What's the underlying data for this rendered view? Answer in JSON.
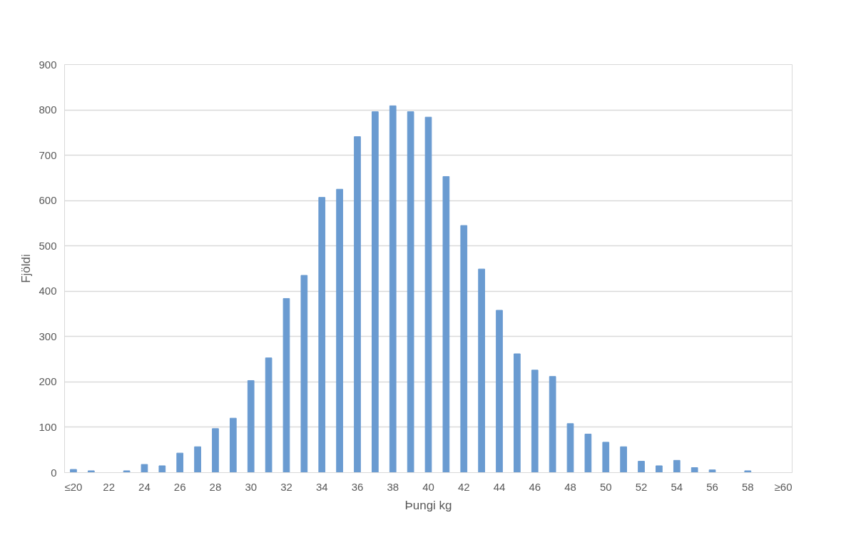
{
  "chart_data": {
    "type": "bar",
    "xlabel": "Þungi kg",
    "ylabel": "Fjöldi",
    "categories": [
      "≤20",
      null,
      "22",
      null,
      "24",
      null,
      "26",
      null,
      "28",
      null,
      "30",
      null,
      "32",
      null,
      "34",
      null,
      "36",
      null,
      "38",
      null,
      "40",
      null,
      "42",
      null,
      "44",
      null,
      "46",
      null,
      "48",
      null,
      "50",
      null,
      "52",
      null,
      "54",
      null,
      "56",
      null,
      "58",
      null,
      "≥60"
    ],
    "values": [
      7,
      4,
      0,
      4,
      18,
      15,
      43,
      57,
      97,
      120,
      203,
      253,
      384,
      435,
      607,
      625,
      741,
      796,
      809,
      796,
      784,
      653,
      545,
      449,
      358,
      262,
      226,
      212,
      108,
      85,
      67,
      57,
      25,
      15,
      27,
      11,
      6,
      0,
      4,
      0,
      0
    ],
    "color": "#6a9bd1",
    "ylim": [
      0,
      900
    ],
    "yticks": [
      0,
      100,
      200,
      300,
      400,
      500,
      600,
      700,
      800,
      900
    ],
    "grid": "y"
  }
}
